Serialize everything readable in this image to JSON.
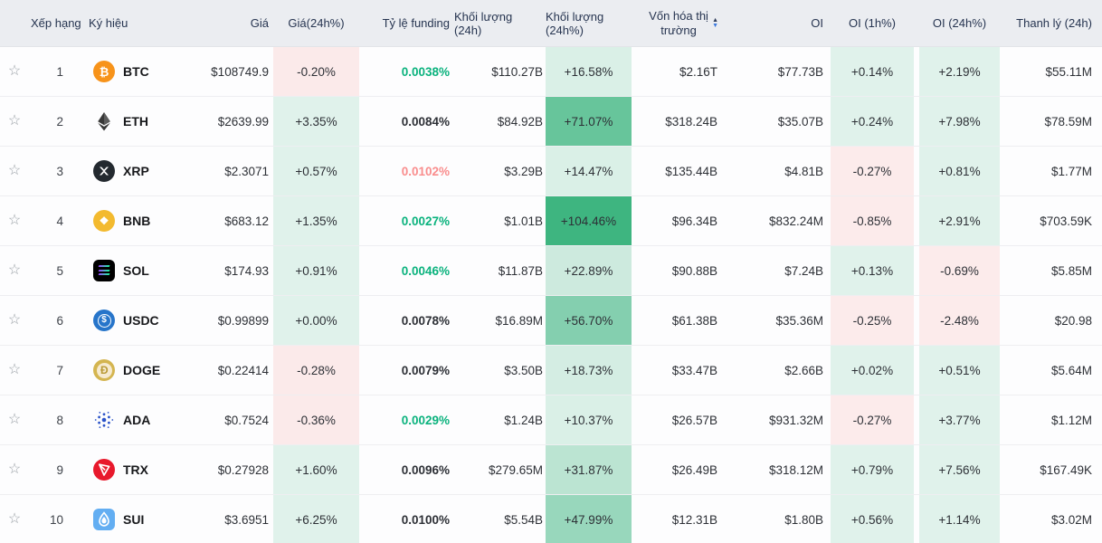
{
  "table": {
    "header": {
      "rank": "Xếp hạng",
      "symbol": "Ký hiệu",
      "price": "Giá",
      "price_24h": "Giá(24h%)",
      "funding": "Tỷ lệ funding",
      "volume": "Khối lượng (24h)",
      "volume_24h": "Khối lượng (24h%)",
      "mcap_line1": "Vốn hóa thị",
      "mcap_line2": "trường",
      "oi": "OI",
      "oi_1h": "OI (1h%)",
      "oi_24h": "OI (24h%)",
      "liq": "Thanh lý (24h)"
    },
    "sort_icons": {
      "up": "▲",
      "down": "▼"
    },
    "star_glyph": "☆",
    "rows": [
      {
        "rank": "1",
        "symbol": "BTC",
        "icon": "btc",
        "price": "$108749.9",
        "price_24h": "-0.20%",
        "funding": "0.0038%",
        "funding_color": "green",
        "volume": "$110.27B",
        "volume_24h": "+16.58%",
        "mcap": "$2.16T",
        "oi": "$77.73B",
        "oi_1h": "+0.14%",
        "oi_24h": "+2.19%",
        "liq": "$55.11M"
      },
      {
        "rank": "2",
        "symbol": "ETH",
        "icon": "eth",
        "price": "$2639.99",
        "price_24h": "+3.35%",
        "funding": "0.0084%",
        "funding_color": "default",
        "volume": "$84.92B",
        "volume_24h": "+71.07%",
        "mcap": "$318.24B",
        "oi": "$35.07B",
        "oi_1h": "+0.24%",
        "oi_24h": "+7.98%",
        "liq": "$78.59M"
      },
      {
        "rank": "3",
        "symbol": "XRP",
        "icon": "xrp",
        "price": "$2.3071",
        "price_24h": "+0.57%",
        "funding": "0.0102%",
        "funding_color": "red",
        "volume": "$3.29B",
        "volume_24h": "+14.47%",
        "mcap": "$135.44B",
        "oi": "$4.81B",
        "oi_1h": "-0.27%",
        "oi_24h": "+0.81%",
        "liq": "$1.77M"
      },
      {
        "rank": "4",
        "symbol": "BNB",
        "icon": "bnb",
        "price": "$683.12",
        "price_24h": "+1.35%",
        "funding": "0.0027%",
        "funding_color": "green",
        "volume": "$1.01B",
        "volume_24h": "+104.46%",
        "mcap": "$96.34B",
        "oi": "$832.24M",
        "oi_1h": "-0.85%",
        "oi_24h": "+2.91%",
        "liq": "$703.59K"
      },
      {
        "rank": "5",
        "symbol": "SOL",
        "icon": "sol",
        "price": "$174.93",
        "price_24h": "+0.91%",
        "funding": "0.0046%",
        "funding_color": "green",
        "volume": "$11.87B",
        "volume_24h": "+22.89%",
        "mcap": "$90.88B",
        "oi": "$7.24B",
        "oi_1h": "+0.13%",
        "oi_24h": "-0.69%",
        "liq": "$5.85M"
      },
      {
        "rank": "6",
        "symbol": "USDC",
        "icon": "usdc",
        "price": "$0.99899",
        "price_24h": "+0.00%",
        "funding": "0.0078%",
        "funding_color": "default",
        "volume": "$16.89M",
        "volume_24h": "+56.70%",
        "mcap": "$61.38B",
        "oi": "$35.36M",
        "oi_1h": "-0.25%",
        "oi_24h": "-2.48%",
        "liq": "$20.98"
      },
      {
        "rank": "7",
        "symbol": "DOGE",
        "icon": "doge",
        "price": "$0.22414",
        "price_24h": "-0.28%",
        "funding": "0.0079%",
        "funding_color": "default",
        "volume": "$3.50B",
        "volume_24h": "+18.73%",
        "mcap": "$33.47B",
        "oi": "$2.66B",
        "oi_1h": "+0.02%",
        "oi_24h": "+0.51%",
        "liq": "$5.64M"
      },
      {
        "rank": "8",
        "symbol": "ADA",
        "icon": "ada",
        "price": "$0.7524",
        "price_24h": "-0.36%",
        "funding": "0.0029%",
        "funding_color": "green",
        "volume": "$1.24B",
        "volume_24h": "+10.37%",
        "mcap": "$26.57B",
        "oi": "$931.32M",
        "oi_1h": "-0.27%",
        "oi_24h": "+3.77%",
        "liq": "$1.12M"
      },
      {
        "rank": "9",
        "symbol": "TRX",
        "icon": "trx",
        "price": "$0.27928",
        "price_24h": "+1.60%",
        "funding": "0.0096%",
        "funding_color": "default",
        "volume": "$279.65M",
        "volume_24h": "+31.87%",
        "mcap": "$26.49B",
        "oi": "$318.12M",
        "oi_1h": "+0.79%",
        "oi_24h": "+7.56%",
        "liq": "$167.49K"
      },
      {
        "rank": "10",
        "symbol": "SUI",
        "icon": "sui",
        "price": "$3.6951",
        "price_24h": "+6.25%",
        "funding": "0.0100%",
        "funding_color": "default",
        "volume": "$5.54B",
        "volume_24h": "+47.99%",
        "mcap": "$12.31B",
        "oi": "$1.80B",
        "oi_1h": "+0.56%",
        "oi_24h": "+1.14%",
        "liq": "$3.02M"
      }
    ]
  },
  "colors": {
    "header_bg": "#ebedf1",
    "header_text": "#263450",
    "row_bg": "#fdfdfe",
    "row_border": "#eeeef1",
    "text_primary": "#2d3036",
    "rank_text": "#3f434a",
    "star": "#9aa0a6",
    "funding_green": "#0ab27d",
    "funding_red": "#f98d8d",
    "tint_green_rgb": "62,181,128",
    "tint_red_rgb": "243,108,98",
    "sort_up": "#2e3c5a",
    "sort_down": "#3b79dd",
    "btc": "#f7931a",
    "eth": "#383838",
    "xrp": "#23292f",
    "bnb": "#f3ba2f",
    "sol_bg": "#000000",
    "usdc": "#2775ca",
    "doge": "#d4b550",
    "ada": "#2a52c8",
    "trx": "#e8192c",
    "sui_bg": "#63aef2"
  }
}
